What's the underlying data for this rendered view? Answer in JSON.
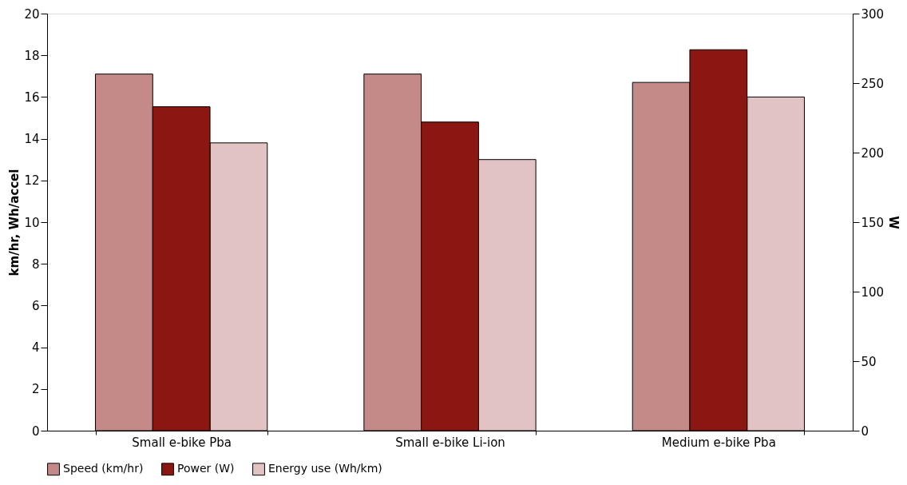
{
  "chart_data": {
    "type": "bar",
    "categories": [
      "Small e-bike Pba",
      "Small e-bike Li-ion",
      "Medium e-bike Pba"
    ],
    "series": [
      {
        "name": "Speed (km/hr)",
        "color": "#c48a87",
        "values": [
          17.1,
          17.1,
          16.7
        ]
      },
      {
        "name": "Power (W)",
        "color": "#8b1713",
        "values": [
          233,
          222,
          274
        ],
        "axis": "y2"
      },
      {
        "name": "Energy use (Wh/km)",
        "color": "#e2c3c4",
        "values": [
          13.8,
          13.0,
          16.0
        ]
      }
    ],
    "ylabel": "km/hr, Wh/accel",
    "y2label": "W",
    "ylim": [
      0,
      20
    ],
    "yticks": [
      0,
      2,
      4,
      6,
      8,
      10,
      12,
      14,
      16,
      18,
      20
    ],
    "y2lim": [
      0,
      300
    ],
    "y2ticks": [
      0,
      50,
      100,
      150,
      200,
      250,
      300
    ],
    "legend": "bottom"
  }
}
